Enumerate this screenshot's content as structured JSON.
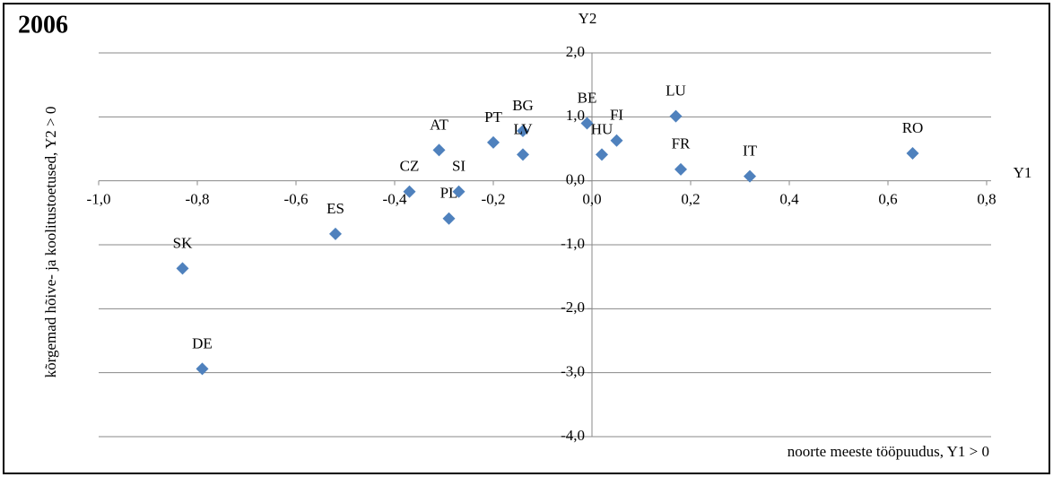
{
  "chart_data": {
    "type": "scatter",
    "title": "2006",
    "x_axis_name": "Y1",
    "y_axis_name": "Y2",
    "xlabel": "noorte meeste tööpuudus, Y1 > 0",
    "ylabel": "kõrgemad hõive- ja koolitustoetused, Y2 > 0",
    "labels": [
      "SK",
      "DE",
      "ES",
      "CZ",
      "PL",
      "SI",
      "AT",
      "PT",
      "BG",
      "LV",
      "BE",
      "HU",
      "FI",
      "LU",
      "FR",
      "IT",
      "RO"
    ],
    "x": [
      -0.83,
      -0.79,
      -0.52,
      -0.37,
      -0.29,
      -0.27,
      -0.31,
      -0.2,
      -0.14,
      -0.14,
      -0.01,
      0.02,
      0.05,
      0.17,
      0.18,
      0.32,
      0.65
    ],
    "values": [
      -1.37,
      -2.94,
      -0.83,
      -0.17,
      -0.59,
      -0.17,
      0.48,
      0.6,
      0.78,
      0.41,
      0.9,
      0.41,
      0.63,
      1.01,
      0.18,
      0.07,
      0.43
    ],
    "color": "#4f81bd",
    "xlim": [
      -1.0,
      0.8
    ],
    "ylim": [
      -4.0,
      2.0
    ],
    "xticks": [
      {
        "value": -1.0,
        "label": "-1,0"
      },
      {
        "value": -0.8,
        "label": "-0,8"
      },
      {
        "value": -0.6,
        "label": "-0,6"
      },
      {
        "value": -0.4,
        "label": "-0,4"
      },
      {
        "value": -0.2,
        "label": "-0,2"
      },
      {
        "value": 0.0,
        "label": "0,0"
      },
      {
        "value": 0.2,
        "label": "0,2"
      },
      {
        "value": 0.4,
        "label": "0,4"
      },
      {
        "value": 0.6,
        "label": "0,6"
      },
      {
        "value": 0.8,
        "label": "0,8"
      }
    ],
    "yticks": [
      {
        "value": 2.0,
        "label": "2,0"
      },
      {
        "value": 1.0,
        "label": "1,0"
      },
      {
        "value": 0.0,
        "label": "0,0"
      },
      {
        "value": -1.0,
        "label": "-1,0"
      },
      {
        "value": -2.0,
        "label": "-2,0"
      },
      {
        "value": -3.0,
        "label": "-3,0"
      },
      {
        "value": -4.0,
        "label": "-4,0"
      }
    ],
    "grid": true
  }
}
